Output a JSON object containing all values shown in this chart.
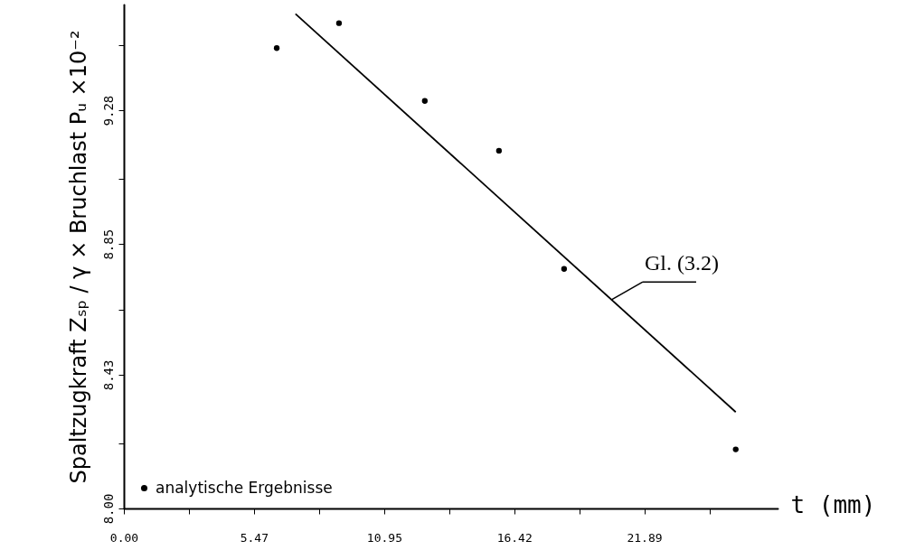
{
  "chart_data": {
    "type": "scatter",
    "xlabel": "t (mm)",
    "ylabel": "Spaltzugkraft Zₛₚ / γ × Bruchlast Pᵤ ×10⁻²",
    "xlim": [
      0,
      27.5
    ],
    "ylim": [
      8.0,
      9.62
    ],
    "xticks": [
      {
        "value": 0,
        "label": "0.00"
      },
      {
        "value": 2.74,
        "label": null
      },
      5.47,
      {
        "value": 8.21,
        "label": null
      },
      10.95,
      {
        "value": 13.69,
        "label": null
      },
      16.42,
      {
        "value": 19.16,
        "label": null
      },
      21.89,
      {
        "value": 24.63,
        "label": null
      }
    ],
    "yticks": [
      {
        "value": 8,
        "label": "8.00"
      },
      {
        "value": 8.21,
        "label": null
      },
      8.43,
      {
        "value": 8.64,
        "label": null
      },
      8.85,
      {
        "value": 9.06,
        "label": null
      },
      9.28,
      {
        "value": 9.49,
        "label": null
      }
    ],
    "series": [
      {
        "name": "analytische Ergebnisse",
        "marker": "circle",
        "color": "#000000",
        "x": [
          6.43,
          9.05,
          12.66,
          15.78,
          18.52,
          25.74
        ],
        "values": [
          9.48,
          9.56,
          9.31,
          9.15,
          8.77,
          8.19
        ]
      },
      {
        "type": "line",
        "marker": "none",
        "color": "#000000",
        "x": [
          7.22,
          25.74
        ],
        "values": [
          9.59,
          8.31
        ]
      }
    ],
    "annotations": [
      {
        "text": "Gl. (3.2)",
        "x": 20.5,
        "y": 8.67
      }
    ],
    "legend": "bottom left",
    "line_style": "solid",
    "grid": false
  }
}
